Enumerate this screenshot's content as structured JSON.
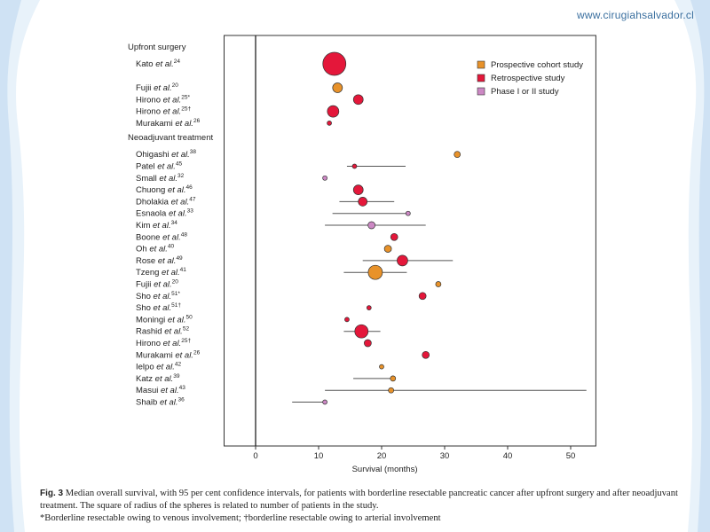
{
  "site_url": "www.cirugiahsalvador.cl",
  "colors": {
    "prospective": "#e8922a",
    "retrospective": "#e4173a",
    "phase": "#cc88c4",
    "ci_line": "#555555"
  },
  "chart_data": {
    "type": "scatter",
    "xlabel": "Survival (months)",
    "xlim": [
      -5,
      54
    ],
    "xticks": [
      0,
      10,
      20,
      30,
      40,
      50
    ],
    "legend_position": "top-right",
    "legend": [
      {
        "key": "prospective",
        "label": "Prospective cohort study"
      },
      {
        "key": "retrospective",
        "label": "Retrospective study"
      },
      {
        "key": "phase",
        "label": "Phase I or II study"
      }
    ],
    "groups": [
      {
        "label": "Upfront surgery",
        "studies": [
          {
            "name": "Kato et al.",
            "sup": "24",
            "median": 12.5,
            "ci": null,
            "type": "retrospective",
            "size": 13
          },
          {
            "name": "Fujii et al.",
            "sup": "20",
            "median": 13,
            "ci": null,
            "type": "prospective",
            "size": 5.5
          },
          {
            "name": "Hirono et al.",
            "sup": "25*",
            "median": 16.3,
            "ci": null,
            "type": "retrospective",
            "size": 5.5
          },
          {
            "name": "Hirono et al.",
            "sup": "25†",
            "median": 12.3,
            "ci": null,
            "type": "retrospective",
            "size": 6.5
          },
          {
            "name": "Murakami et al.",
            "sup": "26",
            "median": 11.7,
            "ci": null,
            "type": "retrospective",
            "size": 2.5
          }
        ]
      },
      {
        "label": "Neoadjuvant treatment",
        "studies": [
          {
            "name": "Ohigashi et al.",
            "sup": "38",
            "median": 32,
            "ci": null,
            "type": "prospective",
            "size": 3.5
          },
          {
            "name": "Patel et al.",
            "sup": "45",
            "median": 15.7,
            "ci": [
              14.5,
              23.8
            ],
            "type": "retrospective",
            "size": 2.5
          },
          {
            "name": "Small et al.",
            "sup": "32",
            "median": 11,
            "ci": null,
            "type": "phase",
            "size": 2.5
          },
          {
            "name": "Chuong et al.",
            "sup": "46",
            "median": 16.3,
            "ci": null,
            "type": "retrospective",
            "size": 5.5
          },
          {
            "name": "Dholakia et al.",
            "sup": "47",
            "median": 17,
            "ci": [
              13.3,
              22
            ],
            "type": "retrospective",
            "size": 5
          },
          {
            "name": "Esnaola et al.",
            "sup": "33",
            "median": 24.2,
            "ci": [
              12.2,
              24.2
            ],
            "type": "phase",
            "size": 2.5
          },
          {
            "name": "Kim et al.",
            "sup": "34",
            "median": 18.4,
            "ci": [
              11,
              27
            ],
            "type": "phase",
            "size": 4
          },
          {
            "name": "Boone et al.",
            "sup": "48",
            "median": 22,
            "ci": null,
            "type": "retrospective",
            "size": 4
          },
          {
            "name": "Oh et al.",
            "sup": "40",
            "median": 21,
            "ci": null,
            "type": "prospective",
            "size": 4
          },
          {
            "name": "Rose et al.",
            "sup": "49",
            "median": 23.3,
            "ci": [
              17,
              31.3
            ],
            "type": "retrospective",
            "size": 6
          },
          {
            "name": "Tzeng et al.",
            "sup": "41",
            "median": 19,
            "ci": [
              14,
              24
            ],
            "type": "prospective",
            "size": 8
          },
          {
            "name": "Fujii et al.",
            "sup": "20",
            "median": 29,
            "ci": null,
            "type": "prospective",
            "size": 3
          },
          {
            "name": "Sho et al.",
            "sup": "51*",
            "median": 26.5,
            "ci": null,
            "type": "retrospective",
            "size": 4
          },
          {
            "name": "Sho et al.",
            "sup": "51†",
            "median": 18,
            "ci": null,
            "type": "retrospective",
            "size": 2.5
          },
          {
            "name": "Moningi et al.",
            "sup": "50",
            "median": 14.5,
            "ci": null,
            "type": "retrospective",
            "size": 2.5
          },
          {
            "name": "Rashid et al.",
            "sup": "52",
            "median": 16.8,
            "ci": [
              14,
              19.8
            ],
            "type": "retrospective",
            "size": 7.5
          },
          {
            "name": "Hirono et al.",
            "sup": "25†",
            "median": 17.8,
            "ci": null,
            "type": "retrospective",
            "size": 4
          },
          {
            "name": "Murakami et al.",
            "sup": "26",
            "median": 27,
            "ci": null,
            "type": "retrospective",
            "size": 4
          },
          {
            "name": "Ielpo et al.",
            "sup": "42",
            "median": 20,
            "ci": null,
            "type": "prospective",
            "size": 2.5
          },
          {
            "name": "Katz et al.",
            "sup": "39",
            "median": 21.8,
            "ci": [
              15.5,
              21.8
            ],
            "type": "prospective",
            "size": 3
          },
          {
            "name": "Masui et al.",
            "sup": "43",
            "median": 21.5,
            "ci": [
              11,
              52.5
            ],
            "type": "prospective",
            "size": 3
          },
          {
            "name": "Shaib et al.",
            "sup": "36",
            "median": 11,
            "ci": [
              5.8,
              11
            ],
            "type": "phase",
            "size": 2.5
          }
        ]
      }
    ]
  },
  "caption": {
    "fig_label": "Fig. 3",
    "text": "Median overall survival, with 95 per cent confidence intervals, for patients with borderline resectable pancreatic cancer after upfront surgery and after neoadjuvant treatment. The square of radius of the spheres is related to number of patients in the study.",
    "footnote": "*Borderline resectable owing to venous involvement; †borderline resectable owing to arterial involvement"
  }
}
